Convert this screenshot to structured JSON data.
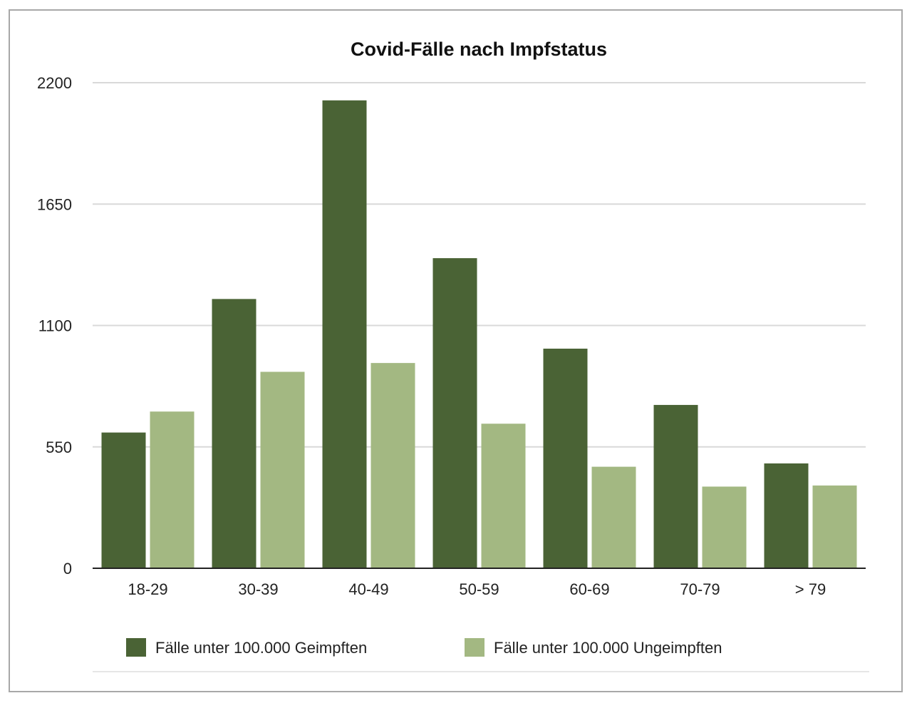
{
  "chart_data": {
    "type": "bar",
    "title": "Covid-Fälle nach Impfstatus",
    "xlabel": "",
    "ylabel": "",
    "ylim": [
      0,
      2200
    ],
    "yticks": [
      "0",
      "550",
      "1100",
      "1650",
      "2200"
    ],
    "categories": [
      "18-29",
      "30-39",
      "40-49",
      "50-59",
      "60-69",
      "70-79",
      "> 79"
    ],
    "series": [
      {
        "name": "Fälle unter 100.000 Geimpften",
        "color": "#4a6335",
        "values": [
          615,
          1220,
          2120,
          1405,
          995,
          740,
          475
        ]
      },
      {
        "name": "Fälle unter 100.000 Ungeimpften",
        "color": "#a3b882",
        "values": [
          710,
          890,
          930,
          655,
          460,
          370,
          375
        ]
      }
    ],
    "grid": true,
    "legend_position": "bottom"
  }
}
